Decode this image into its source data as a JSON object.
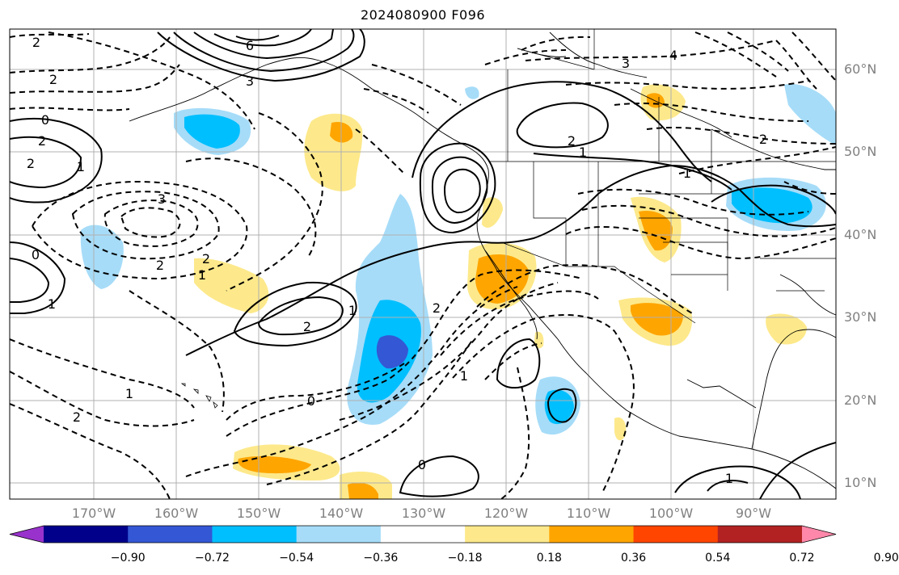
{
  "title": "2024080900 F096",
  "lat_labels": [
    {
      "text": "60°N",
      "lat": 60
    },
    {
      "text": "50°N",
      "lat": 50
    },
    {
      "text": "40°N",
      "lat": 40
    },
    {
      "text": "30°N",
      "lat": 30
    },
    {
      "text": "20°N",
      "lat": 20
    },
    {
      "text": "10°N",
      "lat": 10
    }
  ],
  "lon_labels": [
    {
      "text": "170°W",
      "lon": -170
    },
    {
      "text": "160°W",
      "lon": -160
    },
    {
      "text": "150°W",
      "lon": -150
    },
    {
      "text": "140°W",
      "lon": -140
    },
    {
      "text": "130°W",
      "lon": -130
    },
    {
      "text": "120°W",
      "lon": -120
    },
    {
      "text": "110°W",
      "lon": -110
    },
    {
      "text": "100°W",
      "lon": -100
    },
    {
      "text": "90°W",
      "lon": -90
    }
  ],
  "colorbar": {
    "colors": [
      "#9932cc",
      "#00008b",
      "#3457d5",
      "#00bfff",
      "#a6dcf8",
      "#ffffff",
      "#fde98b",
      "#ffa500",
      "#ff4500",
      "#b22222",
      "#ff88aa"
    ],
    "tick_labels": [
      "−0.90",
      "−0.72",
      "−0.54",
      "−0.36",
      "−0.18",
      "0.18",
      "0.36",
      "0.54",
      "0.72",
      "0.90"
    ]
  },
  "contour_labels": [
    "2",
    "6",
    "2",
    "3",
    "0",
    "2",
    "2",
    "1",
    "3",
    "4",
    "2",
    "1",
    "2",
    "1",
    "3",
    "2",
    "2",
    "1",
    "2",
    "1",
    "1",
    "2",
    "0",
    "1",
    "0",
    "1",
    "2",
    "0",
    "1"
  ]
}
